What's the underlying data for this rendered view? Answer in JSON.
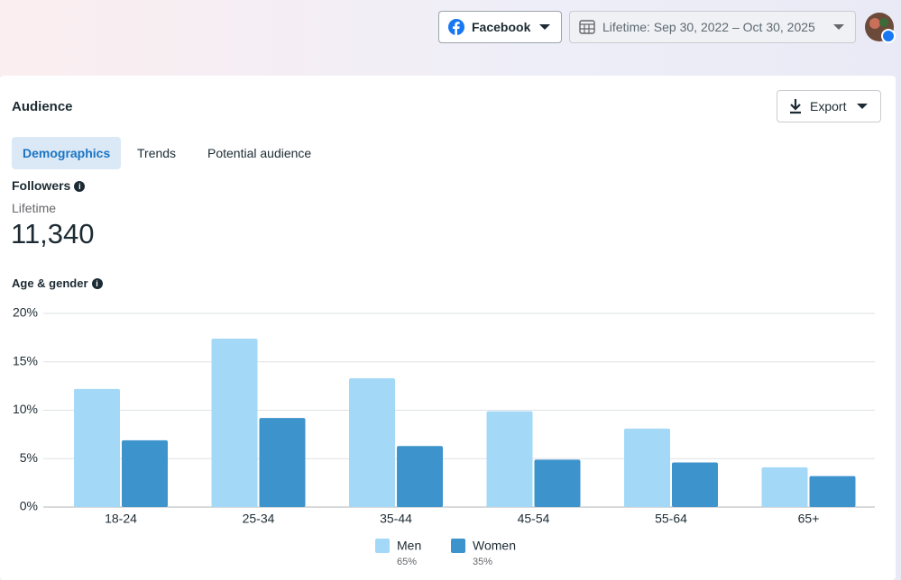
{
  "header": {
    "platform": "Facebook",
    "date_range": "Lifetime: Sep 30, 2022 – Oct 30, 2025"
  },
  "card": {
    "title": "Audience",
    "export": "Export",
    "tabs": [
      "Demographics",
      "Trends",
      "Potential audience"
    ],
    "metric_title": "Followers",
    "metric_period": "Lifetime",
    "metric_value": "11,340"
  },
  "chart_data": {
    "type": "bar",
    "title": "Age & gender",
    "categories": [
      "18-24",
      "25-34",
      "35-44",
      "45-54",
      "55-64",
      "65+"
    ],
    "series": [
      {
        "name": "Men",
        "share": "65%",
        "color": "#a3d9f7",
        "values": [
          12.2,
          17.4,
          13.3,
          9.9,
          8.1,
          4.1
        ]
      },
      {
        "name": "Women",
        "share": "35%",
        "color": "#3d93cc",
        "values": [
          6.9,
          9.2,
          6.3,
          4.9,
          4.6,
          3.2
        ]
      }
    ],
    "ylim": [
      0,
      20
    ],
    "yticks": [
      {
        "value": 0,
        "label": "0%"
      },
      {
        "value": 5,
        "label": "5%"
      },
      {
        "value": 10,
        "label": "10%"
      },
      {
        "value": 15,
        "label": "15%"
      },
      {
        "value": 20,
        "label": "20%"
      }
    ],
    "grid": true
  }
}
